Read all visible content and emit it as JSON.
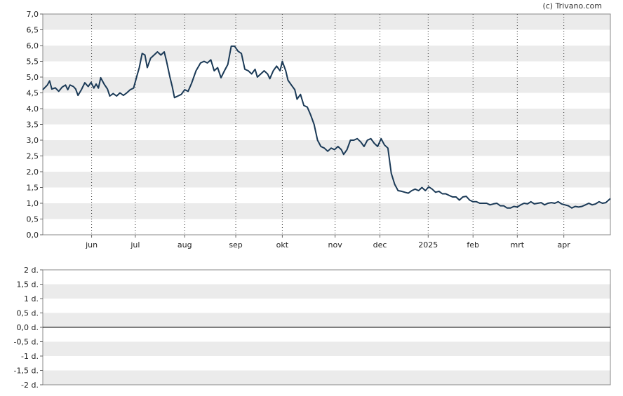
{
  "copyright": "(c) Trivano.com",
  "chart_data": [
    {
      "type": "line",
      "title": "",
      "ylim": [
        0,
        7
      ],
      "yticks": [
        "0,0",
        "0,5",
        "1,0",
        "1,5",
        "2,0",
        "2,5",
        "3,0",
        "3,5",
        "4,0",
        "4,5",
        "5,0",
        "5,5",
        "6,0",
        "6,5",
        "7,0"
      ],
      "xtick_labels": [
        {
          "label": "jun",
          "t": 0.086
        },
        {
          "label": "jul",
          "t": 0.163
        },
        {
          "label": "aug",
          "t": 0.25
        },
        {
          "label": "sep",
          "t": 0.34
        },
        {
          "label": "okt",
          "t": 0.422
        },
        {
          "label": "nov",
          "t": 0.515
        },
        {
          "label": "dec",
          "t": 0.594
        },
        {
          "label": "2025",
          "t": 0.679
        },
        {
          "label": "feb",
          "t": 0.758
        },
        {
          "label": "mrt",
          "t": 0.836
        },
        {
          "label": "apr",
          "t": 0.918
        }
      ],
      "grid": true,
      "line_color": "#1b3a57",
      "series": [
        {
          "values": [
            [
              0.0,
              4.6
            ],
            [
              0.008,
              4.75
            ],
            [
              0.012,
              4.88
            ],
            [
              0.016,
              4.62
            ],
            [
              0.022,
              4.66
            ],
            [
              0.028,
              4.55
            ],
            [
              0.034,
              4.68
            ],
            [
              0.04,
              4.75
            ],
            [
              0.044,
              4.6
            ],
            [
              0.048,
              4.75
            ],
            [
              0.054,
              4.7
            ],
            [
              0.058,
              4.62
            ],
            [
              0.062,
              4.42
            ],
            [
              0.068,
              4.6
            ],
            [
              0.074,
              4.82
            ],
            [
              0.08,
              4.7
            ],
            [
              0.085,
              4.83
            ],
            [
              0.09,
              4.65
            ],
            [
              0.094,
              4.78
            ],
            [
              0.098,
              4.65
            ],
            [
              0.102,
              4.98
            ],
            [
              0.108,
              4.78
            ],
            [
              0.114,
              4.62
            ],
            [
              0.118,
              4.4
            ],
            [
              0.124,
              4.48
            ],
            [
              0.13,
              4.4
            ],
            [
              0.136,
              4.5
            ],
            [
              0.142,
              4.42
            ],
            [
              0.148,
              4.5
            ],
            [
              0.154,
              4.6
            ],
            [
              0.16,
              4.65
            ],
            [
              0.166,
              5.05
            ],
            [
              0.17,
              5.3
            ],
            [
              0.175,
              5.75
            ],
            [
              0.18,
              5.7
            ],
            [
              0.184,
              5.3
            ],
            [
              0.19,
              5.6
            ],
            [
              0.196,
              5.7
            ],
            [
              0.202,
              5.8
            ],
            [
              0.208,
              5.7
            ],
            [
              0.214,
              5.8
            ],
            [
              0.218,
              5.5
            ],
            [
              0.224,
              5.0
            ],
            [
              0.228,
              4.7
            ],
            [
              0.232,
              4.35
            ],
            [
              0.238,
              4.4
            ],
            [
              0.244,
              4.45
            ],
            [
              0.25,
              4.6
            ],
            [
              0.256,
              4.55
            ],
            [
              0.262,
              4.8
            ],
            [
              0.27,
              5.2
            ],
            [
              0.278,
              5.45
            ],
            [
              0.284,
              5.5
            ],
            [
              0.29,
              5.45
            ],
            [
              0.296,
              5.55
            ],
            [
              0.302,
              5.2
            ],
            [
              0.308,
              5.3
            ],
            [
              0.314,
              4.98
            ],
            [
              0.32,
              5.2
            ],
            [
              0.326,
              5.4
            ],
            [
              0.332,
              5.98
            ],
            [
              0.338,
              5.98
            ],
            [
              0.344,
              5.82
            ],
            [
              0.35,
              5.75
            ],
            [
              0.356,
              5.25
            ],
            [
              0.362,
              5.2
            ],
            [
              0.368,
              5.1
            ],
            [
              0.374,
              5.25
            ],
            [
              0.378,
              5.0
            ],
            [
              0.384,
              5.1
            ],
            [
              0.39,
              5.2
            ],
            [
              0.396,
              5.1
            ],
            [
              0.4,
              4.95
            ],
            [
              0.406,
              5.2
            ],
            [
              0.412,
              5.35
            ],
            [
              0.418,
              5.2
            ],
            [
              0.422,
              5.5
            ],
            [
              0.428,
              5.2
            ],
            [
              0.432,
              4.9
            ],
            [
              0.438,
              4.75
            ],
            [
              0.444,
              4.6
            ],
            [
              0.448,
              4.3
            ],
            [
              0.454,
              4.45
            ],
            [
              0.46,
              4.1
            ],
            [
              0.466,
              4.05
            ],
            [
              0.472,
              3.8
            ],
            [
              0.478,
              3.5
            ],
            [
              0.484,
              3.0
            ],
            [
              0.49,
              2.8
            ],
            [
              0.496,
              2.75
            ],
            [
              0.502,
              2.65
            ],
            [
              0.508,
              2.75
            ],
            [
              0.514,
              2.7
            ],
            [
              0.52,
              2.8
            ],
            [
              0.526,
              2.7
            ],
            [
              0.53,
              2.55
            ],
            [
              0.536,
              2.7
            ],
            [
              0.542,
              3.0
            ],
            [
              0.548,
              3.0
            ],
            [
              0.554,
              3.05
            ],
            [
              0.56,
              2.95
            ],
            [
              0.566,
              2.8
            ],
            [
              0.572,
              3.0
            ],
            [
              0.578,
              3.05
            ],
            [
              0.584,
              2.9
            ],
            [
              0.59,
              2.8
            ],
            [
              0.596,
              3.05
            ],
            [
              0.602,
              2.85
            ],
            [
              0.608,
              2.75
            ],
            [
              0.614,
              1.95
            ],
            [
              0.62,
              1.6
            ],
            [
              0.626,
              1.4
            ],
            [
              0.632,
              1.38
            ],
            [
              0.638,
              1.35
            ],
            [
              0.644,
              1.32
            ],
            [
              0.65,
              1.4
            ],
            [
              0.656,
              1.45
            ],
            [
              0.662,
              1.4
            ],
            [
              0.668,
              1.5
            ],
            [
              0.674,
              1.4
            ],
            [
              0.68,
              1.52
            ],
            [
              0.686,
              1.45
            ],
            [
              0.692,
              1.35
            ],
            [
              0.698,
              1.38
            ],
            [
              0.704,
              1.3
            ],
            [
              0.71,
              1.3
            ],
            [
              0.716,
              1.25
            ],
            [
              0.722,
              1.2
            ],
            [
              0.728,
              1.2
            ],
            [
              0.734,
              1.1
            ],
            [
              0.74,
              1.2
            ],
            [
              0.746,
              1.22
            ],
            [
              0.752,
              1.1
            ],
            [
              0.758,
              1.05
            ],
            [
              0.764,
              1.05
            ],
            [
              0.77,
              1.0
            ],
            [
              0.776,
              1.0
            ],
            [
              0.782,
              1.0
            ],
            [
              0.788,
              0.95
            ],
            [
              0.794,
              0.98
            ],
            [
              0.8,
              1.0
            ],
            [
              0.806,
              0.92
            ],
            [
              0.812,
              0.92
            ],
            [
              0.818,
              0.85
            ],
            [
              0.824,
              0.85
            ],
            [
              0.83,
              0.9
            ],
            [
              0.836,
              0.88
            ],
            [
              0.842,
              0.95
            ],
            [
              0.848,
              1.0
            ],
            [
              0.854,
              0.98
            ],
            [
              0.86,
              1.05
            ],
            [
              0.866,
              0.98
            ],
            [
              0.872,
              1.0
            ],
            [
              0.878,
              1.02
            ],
            [
              0.884,
              0.95
            ],
            [
              0.89,
              1.0
            ],
            [
              0.896,
              1.02
            ],
            [
              0.902,
              1.0
            ],
            [
              0.908,
              1.05
            ],
            [
              0.914,
              0.98
            ],
            [
              0.92,
              0.95
            ],
            [
              0.926,
              0.92
            ],
            [
              0.932,
              0.85
            ],
            [
              0.938,
              0.9
            ],
            [
              0.944,
              0.88
            ],
            [
              0.95,
              0.9
            ],
            [
              0.956,
              0.95
            ],
            [
              0.962,
              1.0
            ],
            [
              0.968,
              0.95
            ],
            [
              0.974,
              0.98
            ],
            [
              0.98,
              1.05
            ],
            [
              0.986,
              1.0
            ],
            [
              0.992,
              1.02
            ],
            [
              1.0,
              1.15
            ]
          ]
        }
      ]
    },
    {
      "type": "line",
      "title": "",
      "ylim": [
        -2,
        2
      ],
      "yticks": [
        "-2 d.",
        "-1,5 d.",
        "-1 d.",
        "-0,5 d.",
        "0,0 d.",
        "0,5 d.",
        "1 d.",
        "1,5 d.",
        "2 d."
      ],
      "zero_line": true,
      "series": []
    }
  ]
}
